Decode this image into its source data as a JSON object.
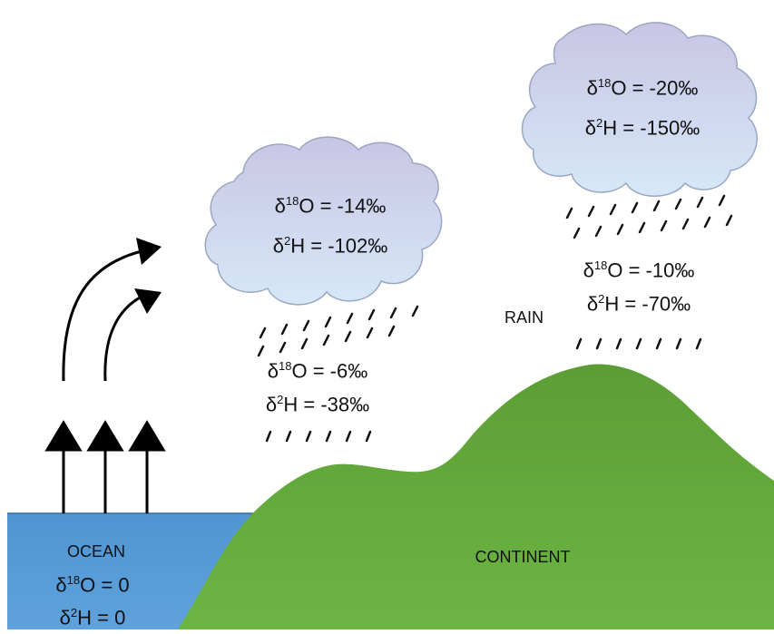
{
  "ocean": {
    "label": "OCEAN",
    "o18": {
      "delta": "δ",
      "sup": "18",
      "rest": "O = 0"
    },
    "h2": {
      "delta": "δ",
      "sup": "2",
      "rest": "H = 0"
    }
  },
  "continent": {
    "label": "CONTINENT"
  },
  "rain_label": "RAIN",
  "cloud_left": {
    "o18": {
      "delta": "δ",
      "sup": "18",
      "rest": "O = -14‰"
    },
    "h2": {
      "delta": "δ",
      "sup": "2",
      "rest": "H = -102‰"
    }
  },
  "cloud_right": {
    "o18": {
      "delta": "δ",
      "sup": "18",
      "rest": "O = -20‰"
    },
    "h2": {
      "delta": "δ",
      "sup": "2",
      "rest": "H = -150‰"
    }
  },
  "rain_left": {
    "o18": {
      "delta": "δ",
      "sup": "18",
      "rest": "O = -6‰"
    },
    "h2": {
      "delta": "δ",
      "sup": "2",
      "rest": "H = -38‰"
    }
  },
  "rain_right": {
    "o18": {
      "delta": "δ",
      "sup": "18",
      "rest": "O = -10‰"
    },
    "h2": {
      "delta": "δ",
      "sup": "2",
      "rest": "H = -70‰"
    }
  },
  "colors": {
    "ocean": "#5b9bd5",
    "land": "#70ad47",
    "cloud_top": "#c7c3e3",
    "cloud_bottom": "#d4e6f7"
  }
}
